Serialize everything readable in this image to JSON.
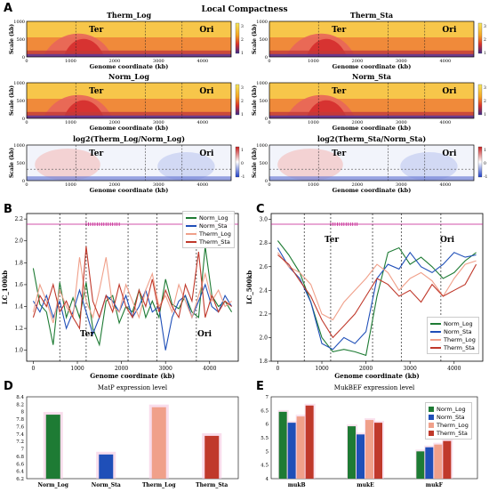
{
  "panels": {
    "A": {
      "letter": "A",
      "title": "Local Compactness",
      "heatmaps": [
        {
          "title": "Therm_Log",
          "label_left": "Ter",
          "label_right": "Ori",
          "kind": "lc"
        },
        {
          "title": "Therm_Sta",
          "label_left": "Ter",
          "label_right": "Ori",
          "kind": "lc"
        },
        {
          "title": "Norm_Log",
          "label_left": "Ter",
          "label_right": "Ori",
          "kind": "lc"
        },
        {
          "title": "Norm_Sta",
          "label_left": "Ter",
          "label_right": "Ori",
          "kind": "lc"
        },
        {
          "title": "log2(Therm_Log/Norm_Log)",
          "label_left": "Ter",
          "label_right": "Ori",
          "kind": "ratio"
        },
        {
          "title": "log2(Therm_Sta/Norm_Sta)",
          "label_left": "Ter",
          "label_right": "Ori",
          "kind": "ratio"
        }
      ],
      "xlabel": "Genome coordinate (kb)",
      "ylabel": "Scale (kb)",
      "x_ticks": [
        "0",
        "1000",
        "2000",
        "3000",
        "4000"
      ],
      "y_ticks": [
        "0",
        "500",
        "1000"
      ],
      "colorbar_lc_ticks": [
        "3",
        "2",
        "1"
      ],
      "colorbar_ratio_ticks": [
        "1",
        "0",
        "-1"
      ]
    },
    "B": {
      "letter": "B",
      "label_ter": "Ter",
      "label_ori": "Ori"
    },
    "C": {
      "letter": "C",
      "label_ter": "Ter",
      "label_ori": "Ori"
    },
    "D": {
      "letter": "D"
    },
    "E": {
      "letter": "E"
    }
  },
  "colors": {
    "Norm_Log": "#1e7b34",
    "Norm_Sta": "#1f4fb8",
    "Therm_Log": "#f0a08a",
    "Therm_Sta": "#c0392b",
    "pink_band": "#f5c6e0",
    "marker": "#c2188c"
  },
  "chart_data": [
    {
      "type": "line",
      "panel": "B",
      "xlabel": "Genome coordinate (kb)",
      "ylabel": "LC_100kb",
      "xlim": [
        -150,
        4650
      ],
      "ylim": [
        0.9,
        2.25
      ],
      "x_ticks": [
        0,
        1000,
        2000,
        3000,
        4000
      ],
      "y_ticks": [
        1.0,
        1.2,
        1.4,
        1.6,
        1.8,
        2.0,
        2.2
      ],
      "legend_position": "top-right",
      "x": [
        0,
        150,
        300,
        450,
        600,
        750,
        900,
        1050,
        1200,
        1350,
        1500,
        1650,
        1800,
        1950,
        2100,
        2250,
        2400,
        2550,
        2700,
        2850,
        3000,
        3150,
        3300,
        3450,
        3600,
        3750,
        3900,
        4050,
        4200,
        4350,
        4500
      ],
      "series": [
        {
          "name": "Norm_Log",
          "values": [
            1.75,
            1.42,
            1.35,
            1.05,
            1.62,
            1.3,
            1.48,
            1.3,
            1.62,
            1.2,
            1.05,
            1.45,
            1.5,
            1.25,
            1.4,
            1.35,
            1.55,
            1.3,
            1.45,
            1.3,
            1.65,
            1.42,
            1.38,
            1.5,
            1.35,
            1.3,
            1.95,
            1.5,
            1.4,
            1.45,
            1.35
          ]
        },
        {
          "name": "Norm_Sta",
          "values": [
            1.45,
            1.35,
            1.5,
            1.3,
            1.45,
            1.2,
            1.35,
            1.55,
            1.35,
            1.15,
            1.3,
            1.5,
            1.45,
            1.35,
            1.5,
            1.3,
            1.4,
            1.55,
            1.35,
            1.4,
            1.0,
            1.3,
            1.45,
            1.5,
            1.3,
            1.45,
            1.6,
            1.4,
            1.35,
            1.5,
            1.4
          ]
        },
        {
          "name": "Therm_Log",
          "values": [
            1.35,
            1.6,
            1.45,
            1.25,
            1.55,
            1.4,
            1.3,
            1.85,
            1.45,
            1.3,
            1.55,
            1.85,
            1.4,
            1.35,
            1.6,
            1.45,
            1.3,
            1.55,
            1.7,
            1.4,
            1.5,
            1.35,
            1.6,
            1.45,
            1.3,
            1.5,
            1.7,
            1.45,
            1.55,
            1.4,
            1.45
          ]
        },
        {
          "name": "Therm_Sta",
          "values": [
            1.3,
            1.5,
            1.4,
            1.6,
            1.35,
            1.45,
            1.3,
            1.2,
            1.95,
            1.45,
            1.3,
            1.5,
            1.35,
            1.6,
            1.4,
            1.3,
            1.55,
            1.4,
            1.65,
            1.35,
            1.55,
            1.4,
            1.3,
            1.6,
            1.45,
            1.9,
            1.3,
            1.5,
            1.35,
            1.45,
            1.4
          ]
        }
      ]
    },
    {
      "type": "line",
      "panel": "C",
      "xlabel": "Genome coordinate (kb)",
      "ylabel": "LC_500kb",
      "xlim": [
        -150,
        4650
      ],
      "ylim": [
        1.8,
        3.05
      ],
      "x_ticks": [
        0,
        1000,
        2000,
        3000,
        4000
      ],
      "y_ticks": [
        1.8,
        2.0,
        2.2,
        2.4,
        2.6,
        2.8,
        3.0
      ],
      "legend_position": "bottom-right",
      "x": [
        0,
        250,
        500,
        750,
        1000,
        1250,
        1500,
        1750,
        2000,
        2250,
        2500,
        2750,
        3000,
        3250,
        3500,
        3750,
        4000,
        4250,
        4500
      ],
      "series": [
        {
          "name": "Norm_Log",
          "values": [
            2.82,
            2.7,
            2.55,
            2.3,
            2.0,
            1.88,
            1.9,
            1.88,
            1.85,
            2.35,
            2.72,
            2.76,
            2.62,
            2.68,
            2.6,
            2.5,
            2.55,
            2.65,
            2.72
          ]
        },
        {
          "name": "Norm_Sta",
          "values": [
            2.76,
            2.6,
            2.5,
            2.3,
            1.95,
            1.9,
            2.0,
            1.95,
            2.05,
            2.5,
            2.62,
            2.58,
            2.72,
            2.6,
            2.55,
            2.62,
            2.72,
            2.68,
            2.7
          ]
        },
        {
          "name": "Therm_Log",
          "values": [
            2.72,
            2.6,
            2.55,
            2.45,
            2.2,
            2.15,
            2.3,
            2.4,
            2.5,
            2.62,
            2.55,
            2.4,
            2.5,
            2.55,
            2.48,
            2.35,
            2.5,
            2.62,
            2.65
          ]
        },
        {
          "name": "Therm_Sta",
          "values": [
            2.7,
            2.62,
            2.48,
            2.35,
            2.15,
            2.0,
            2.1,
            2.2,
            2.35,
            2.5,
            2.45,
            2.35,
            2.4,
            2.3,
            2.45,
            2.35,
            2.4,
            2.45,
            2.62
          ]
        }
      ]
    },
    {
      "type": "bar",
      "panel": "D",
      "title": "MatP expression level",
      "categories": [
        "Norm_Log",
        "Norm_Sta",
        "Therm_Log",
        "Therm_Sta"
      ],
      "values": [
        7.92,
        6.85,
        8.12,
        7.35
      ],
      "ylim": [
        6.2,
        8.4
      ],
      "y_ticks": [
        "6.2",
        "6.4",
        "6.6",
        "6.8",
        "7",
        "7.2",
        "7.4",
        "7.6",
        "7.8",
        "8",
        "8.2",
        "8.4"
      ]
    },
    {
      "type": "bar",
      "panel": "E",
      "title": "MukBEF expression level",
      "categories": [
        "mukB",
        "mukE",
        "mukF"
      ],
      "ylim": [
        4,
        7
      ],
      "y_ticks": [
        "4",
        "4.5",
        "5",
        "5.5",
        "6",
        "6.5",
        "7"
      ],
      "legend_position": "top-right",
      "series": [
        {
          "name": "Norm_Log",
          "values": [
            6.45,
            5.92,
            5.0
          ]
        },
        {
          "name": "Norm_Sta",
          "values": [
            6.05,
            5.62,
            5.15
          ]
        },
        {
          "name": "Therm_Log",
          "values": [
            6.28,
            6.15,
            5.25
          ]
        },
        {
          "name": "Therm_Sta",
          "values": [
            6.68,
            6.05,
            5.38
          ]
        }
      ]
    }
  ]
}
